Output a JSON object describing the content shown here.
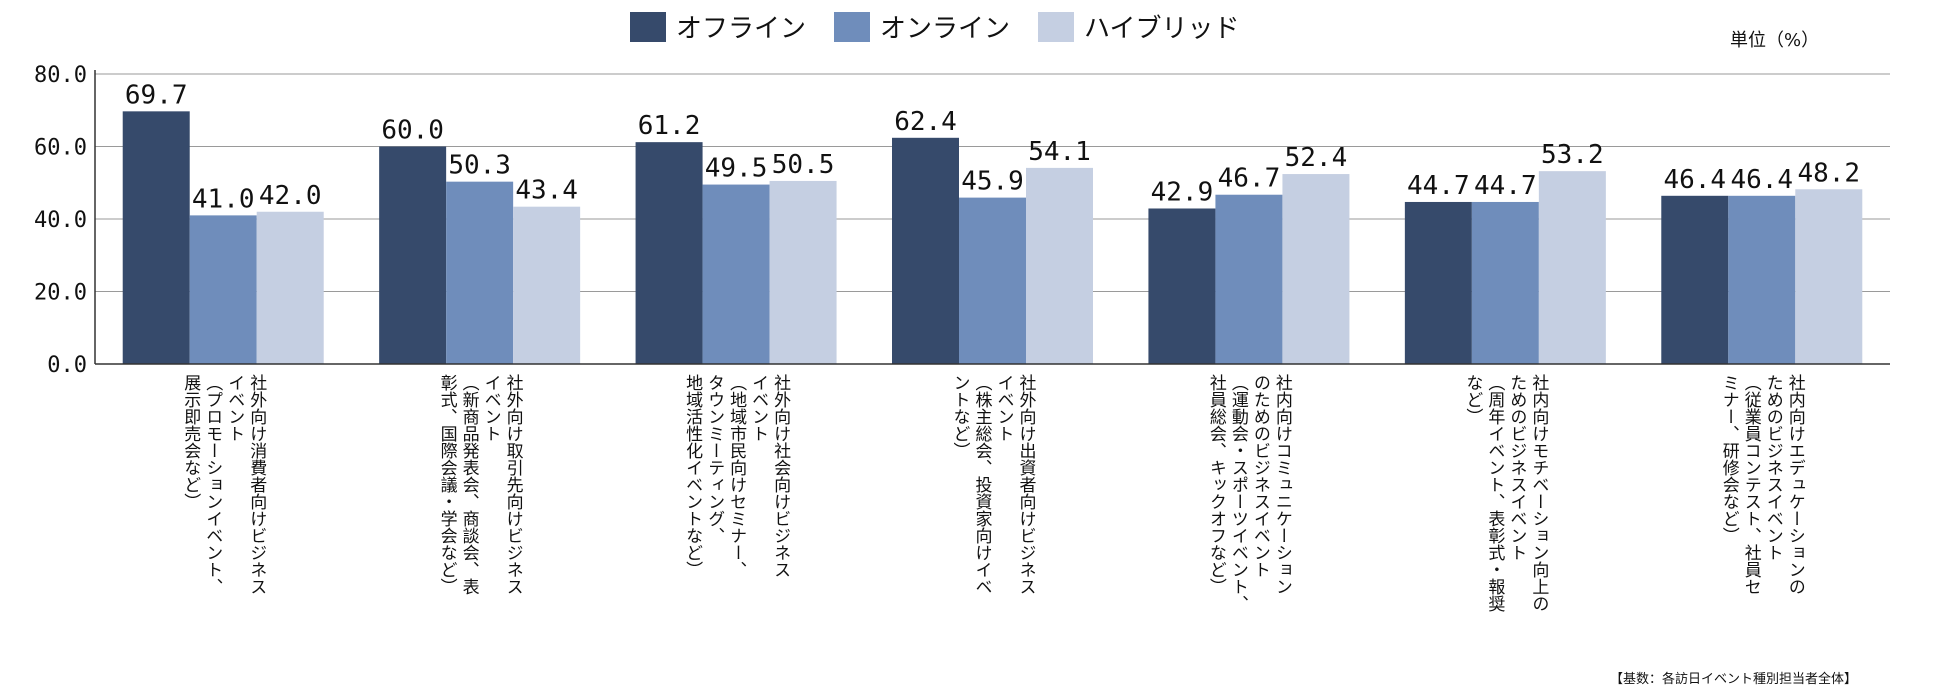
{
  "legend": {
    "items": [
      {
        "label": "オフライン",
        "color": "#364a6b"
      },
      {
        "label": "オンライン",
        "color": "#6f8dbb"
      },
      {
        "label": "ハイブリッド",
        "color": "#c5cfe2"
      }
    ]
  },
  "unit_label": "単位（%）",
  "footnote": "【基数：各訪日イベント種別担当者全体】",
  "chart_data": {
    "type": "bar",
    "title": "",
    "xlabel": "",
    "ylabel": "",
    "ylim": [
      0,
      80
    ],
    "yticks": [
      "0.0",
      "20.0",
      "40.0",
      "60.0",
      "80.0"
    ],
    "grid": true,
    "legend_position": "top-center",
    "categories": [
      [
        "社外向け消費者向けビジネス",
        "イベント",
        "（プロモーションイベント、",
        "展示即売会など）"
      ],
      [
        "社外向け取引先向けビジネス",
        "イベント",
        "（新商品発表会、商談会、表",
        "彰式、国際会議・学会など）"
      ],
      [
        "社外向け社会向けビジネス",
        "イベント",
        "（地域市民向けセミナー、",
        "タウンミーティング、",
        "地域活性化イベントなど）"
      ],
      [
        "社外向け出資者向けビジネス",
        "イベント",
        "（株主総会、投資家向けイベ",
        "ントなど）"
      ],
      [
        "社内向けコミュニケーション",
        "のためのビジネスイベント",
        "（運動会・スポーツイベント、",
        "社員総会、キックオフなど）"
      ],
      [
        "社内向けモチベーション向上の",
        "ためのビジネスイベント",
        "（周年イベント、表彰式・報奨",
        "など）"
      ],
      [
        "社内向けエデュケーションの",
        "ためのビジネスイベント",
        "（従業員コンテスト、社員セ",
        "ミナー、研修会など）"
      ]
    ],
    "series": [
      {
        "name": "オフライン",
        "color": "#364a6b",
        "values": [
          69.7,
          60.0,
          61.2,
          62.4,
          42.9,
          44.7,
          46.4
        ],
        "labels": [
          "69.7",
          "60.0",
          "61.2",
          "62.4",
          "42.9",
          "44.7",
          "46.4"
        ]
      },
      {
        "name": "オンライン",
        "color": "#6f8dbb",
        "values": [
          41.0,
          50.3,
          49.5,
          45.9,
          46.7,
          44.7,
          46.4
        ],
        "labels": [
          "41.0",
          "50.3",
          "49.5",
          "45.9",
          "46.7",
          "44.7",
          "46.4"
        ]
      },
      {
        "name": "ハイブリッド",
        "color": "#c5cfe2",
        "values": [
          42.0,
          43.4,
          50.5,
          54.1,
          52.4,
          53.2,
          48.2
        ],
        "labels": [
          "42.0",
          "43.4",
          "50.5",
          "54.1",
          "52.4",
          "53.2",
          "48.2"
        ]
      }
    ]
  }
}
